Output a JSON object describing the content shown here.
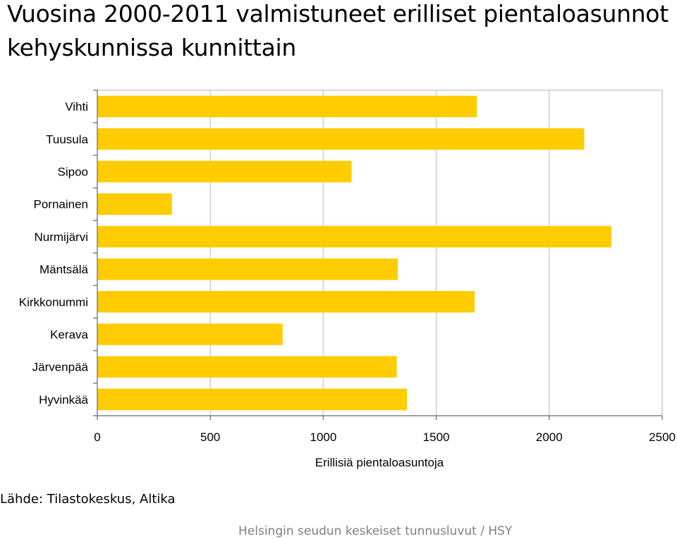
{
  "page": {
    "title": "Vuosina 2000-2011 valmistuneet erilliset pientaloasunnot kehyskunnissa kunnittain",
    "source": "Lähde: Tilastokeskus, Altika",
    "footer": "Helsingin seudun keskeiset tunnusluvut / HSY"
  },
  "chart_data": {
    "type": "bar",
    "orientation": "horizontal",
    "categories": [
      "Vihti",
      "Tuusula",
      "Sipoo",
      "Pornainen",
      "Nurmijärvi",
      "Mäntsälä",
      "Kirkkonummi",
      "Kerava",
      "Järvenpää",
      "Hyvinkää"
    ],
    "values": [
      1680,
      2155,
      1125,
      330,
      2275,
      1330,
      1670,
      820,
      1325,
      1370
    ],
    "xlabel": "Erillisiä pientaloasuntoja",
    "ylabel": "",
    "xlim": [
      0,
      2500
    ],
    "xticks": [
      0,
      500,
      1000,
      1500,
      2000,
      2500
    ],
    "grid": true,
    "bar_color": "#ffcc00",
    "grid_color": "#d9d9d9",
    "axis_color": "#808080"
  }
}
